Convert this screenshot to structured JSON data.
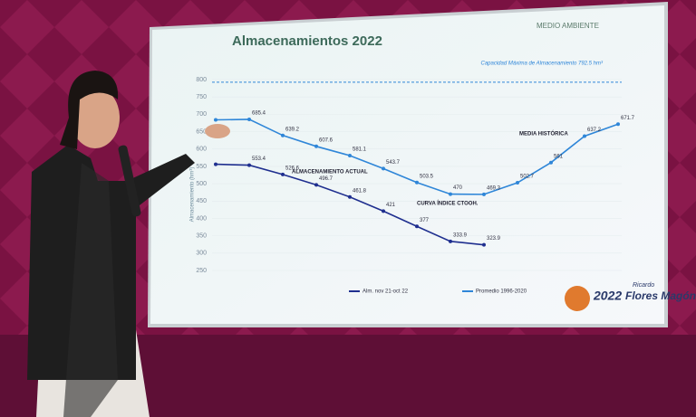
{
  "chart_data": {
    "type": "line",
    "title": "Almacenamientos 2022",
    "header": "MEDIO AMBIENTE",
    "y_label": "Almacenamiento (hm³)",
    "capacity_label": "Capacidad Máxima de Almacenamiento 792.5 hm³",
    "capacity": 792.5,
    "categories": [
      null,
      null,
      null,
      null,
      null,
      null,
      null,
      null,
      null,
      null,
      null,
      null,
      null
    ],
    "series": [
      {
        "name": "Alm. nov 21-oct 22",
        "color": "#1f2f8f",
        "values": [
          556,
          553.4,
          526.6,
          496.7,
          461.8,
          421.0,
          377.0,
          333.9,
          323.9,
          null,
          null,
          null,
          null
        ]
      },
      {
        "name": "Promedio 1996-2020",
        "color": "#2f86d8",
        "values": [
          684,
          685.4,
          639.2,
          607.6,
          581.1,
          543.7,
          503.5,
          470.0,
          469.3,
          502.7,
          561.0,
          637.2,
          671.7
        ]
      }
    ],
    "annotations": [
      "MEDIA HISTÓRICA",
      "ALMACENAMIENTO ACTUAL",
      "CURVA ÍNDICE CTOOH."
    ],
    "ylim": [
      250,
      800
    ],
    "yticks": [
      250,
      300,
      350,
      400,
      450,
      500,
      550,
      600,
      650,
      700,
      750,
      800
    ],
    "logo": {
      "year": "2022",
      "name": "Flores Magón",
      "sub": "Ricardo"
    }
  }
}
